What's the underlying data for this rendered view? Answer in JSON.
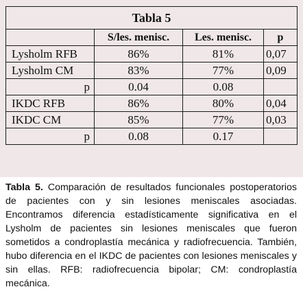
{
  "table": {
    "title": "Tabla 5",
    "headers": [
      "",
      "S/les. menisc.",
      "Les. menisc.",
      "p"
    ],
    "rows": [
      {
        "label": "Lysholm RFB",
        "s": "86%",
        "l": "81%",
        "p": "0,07"
      },
      {
        "label": "Lysholm CM",
        "s": "83%",
        "l": "77%",
        "p": "0,09"
      },
      {
        "label": "p",
        "s": "0.04",
        "l": "0.08",
        "p": ""
      },
      {
        "label": "IKDC RFB",
        "s": "86%",
        "l": "80%",
        "p": "0,04"
      },
      {
        "label": "IKDC CM",
        "s": "85%",
        "l": "77%",
        "p": "0,03"
      },
      {
        "label": "p",
        "s": "0.08",
        "l": "0.17",
        "p": ""
      }
    ]
  },
  "caption": {
    "lead": "Tabla 5.",
    "text": " Comparación de resultados funcionales postoperatorios de pacientes con y sin lesiones meniscales asociadas. Encontramos diferencia estadísticamente significativa en el Lysholm de pacientes sin lesiones meniscales que fueron sometidos a condroplastía mecánica y radiofrecuencia. También, hubo diferencia en el IKDC de pacientes con lesiones meniscales y sin ellas. RFB: radiofrecuencia bipolar; CM: condroplastía mecánica."
  }
}
